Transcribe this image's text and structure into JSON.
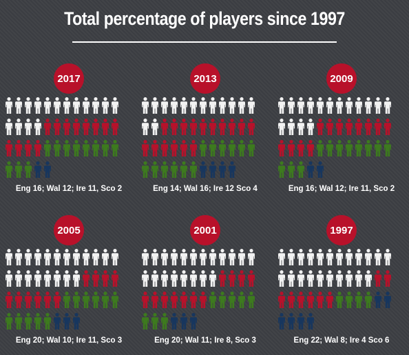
{
  "title": "Total percentage of players since 1997",
  "colors": {
    "background": "#3d3f44",
    "badge": "#b8112a",
    "England": "#f2f2f2",
    "Wales": "#b8112a",
    "Ireland": "#3d7a1e",
    "Scotland": "#17365e"
  },
  "icon": "person-icon",
  "chart_data": [
    {
      "type": "pictogram",
      "year": "2017",
      "caption": "Eng 16; Wal 12; Ire 11, Sco 2",
      "series": [
        {
          "name": "Eng",
          "value": 16
        },
        {
          "name": "Wal",
          "value": 12
        },
        {
          "name": "Ire",
          "value": 11
        },
        {
          "name": "Sco",
          "value": 2
        }
      ]
    },
    {
      "type": "pictogram",
      "year": "2013",
      "caption": "Eng 14; Wal 16; Ire 12 Sco 4",
      "series": [
        {
          "name": "Eng",
          "value": 14
        },
        {
          "name": "Wal",
          "value": 16
        },
        {
          "name": "Ire",
          "value": 12
        },
        {
          "name": "Sco",
          "value": 4
        }
      ]
    },
    {
      "type": "pictogram",
      "year": "2009",
      "caption": "Eng 16; Wal 12; Ire 11, Sco 2",
      "series": [
        {
          "name": "Eng",
          "value": 16
        },
        {
          "name": "Wal",
          "value": 12
        },
        {
          "name": "Ire",
          "value": 11
        },
        {
          "name": "Sco",
          "value": 2
        }
      ]
    },
    {
      "type": "pictogram",
      "year": "2005",
      "caption": "Eng 20; Wal 10; Ire 11, Sco 3",
      "series": [
        {
          "name": "Eng",
          "value": 20
        },
        {
          "name": "Wal",
          "value": 10
        },
        {
          "name": "Ire",
          "value": 11
        },
        {
          "name": "Sco",
          "value": 3
        }
      ]
    },
    {
      "type": "pictogram",
      "year": "2001",
      "caption": "Eng 20; Wal 11; Ire 8, Sco 3",
      "series": [
        {
          "name": "Eng",
          "value": 20
        },
        {
          "name": "Wal",
          "value": 11
        },
        {
          "name": "Ire",
          "value": 8
        },
        {
          "name": "Sco",
          "value": 3
        }
      ]
    },
    {
      "type": "pictogram",
      "year": "1997",
      "caption": "Eng 22; Wal 8; Ire 4 Sco 6",
      "series": [
        {
          "name": "Eng",
          "value": 22
        },
        {
          "name": "Wal",
          "value": 8
        },
        {
          "name": "Ire",
          "value": 4
        },
        {
          "name": "Sco",
          "value": 6
        }
      ]
    }
  ]
}
